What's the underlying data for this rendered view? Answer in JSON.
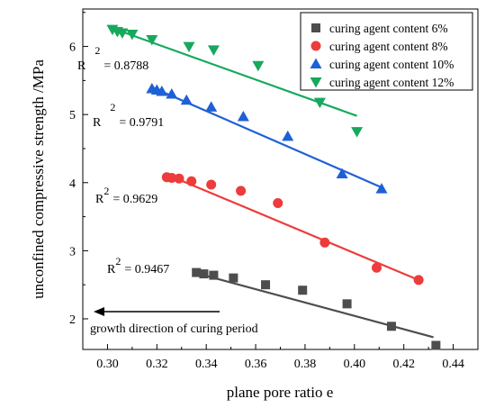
{
  "chart_data": {
    "type": "scatter",
    "xlabel": "plane pore ratio e",
    "ylabel": "unconfined compressive strength /MPa",
    "xlim": [
      0.29,
      0.45
    ],
    "ylim": [
      1.55,
      6.55
    ],
    "xticks": [
      "0.30",
      "0.32",
      "0.34",
      "0.36",
      "0.38",
      "0.40",
      "0.42",
      "0.44"
    ],
    "yticks": [
      "2",
      "3",
      "4",
      "5",
      "6"
    ],
    "grid": false,
    "legend_position": "top-right",
    "annotation": "growth direction of curing period",
    "series": [
      {
        "name": "curing agent content 6%",
        "color": "#4d4d4d",
        "marker": "square",
        "r2_label": "R",
        "r2_exp": "2",
        "r2_value": "= 0.9467",
        "x": [
          0.336,
          0.339,
          0.343,
          0.351,
          0.364,
          0.379,
          0.397,
          0.415,
          0.433
        ],
        "y": [
          2.68,
          2.66,
          2.64,
          2.6,
          2.5,
          2.42,
          2.22,
          1.89,
          1.61
        ],
        "fit": [
          [
            0.335,
            2.68
          ],
          [
            0.432,
            1.73
          ]
        ]
      },
      {
        "name": "curing agent content 8%",
        "color": "#ee3b3b",
        "marker": "circle",
        "r2_label": "R",
        "r2_exp": "2",
        "r2_value": "= 0.9629",
        "x": [
          0.324,
          0.326,
          0.329,
          0.334,
          0.342,
          0.354,
          0.369,
          0.388,
          0.409,
          0.426
        ],
        "y": [
          4.08,
          4.07,
          4.06,
          4.02,
          3.97,
          3.88,
          3.7,
          3.12,
          2.75,
          2.57
        ],
        "fit": [
          [
            0.324,
            4.12
          ],
          [
            0.426,
            2.57
          ]
        ]
      },
      {
        "name": "curing agent content 10%",
        "color": "#1e60d6",
        "marker": "triangle-up",
        "r2_label": "R",
        "r2_exp": "2",
        "r2_value": "= 0.9791",
        "x": [
          0.318,
          0.32,
          0.322,
          0.326,
          0.332,
          0.342,
          0.355,
          0.373,
          0.395,
          0.411
        ],
        "y": [
          5.38,
          5.36,
          5.34,
          5.3,
          5.21,
          5.11,
          4.97,
          4.68,
          4.13,
          3.91
        ],
        "fit": [
          [
            0.318,
            5.4
          ],
          [
            0.411,
            3.93
          ]
        ]
      },
      {
        "name": "curing agent content 12%",
        "color": "#17a85d",
        "marker": "triangle-down",
        "r2_label": "R",
        "r2_exp": "2",
        "r2_value": "= 0.8788",
        "x": [
          0.302,
          0.304,
          0.306,
          0.31,
          0.318,
          0.333,
          0.343,
          0.361,
          0.386,
          0.401
        ],
        "y": [
          6.25,
          6.22,
          6.2,
          6.18,
          6.1,
          6.0,
          5.95,
          5.72,
          5.18,
          4.75
        ],
        "fit": [
          [
            0.301,
            6.28
          ],
          [
            0.401,
            4.98
          ]
        ]
      }
    ]
  }
}
